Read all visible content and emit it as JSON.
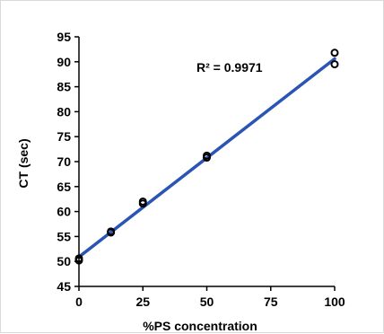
{
  "chart_data": {
    "type": "scatter",
    "title": "",
    "xlabel": "%PS concentration",
    "ylabel": "CT (sec)",
    "xlim": [
      0,
      100
    ],
    "ylim": [
      45,
      95
    ],
    "x_ticks": [
      "0",
      "25",
      "50",
      "75",
      "100"
    ],
    "y_ticks": [
      "45",
      "50",
      "55",
      "60",
      "65",
      "70",
      "75",
      "80",
      "85",
      "90",
      "95"
    ],
    "grid": false,
    "legend": "none",
    "annotation": "R² = 0.9971",
    "series": [
      {
        "x": [
          0,
          0,
          12.5,
          12.5,
          25,
          25,
          50,
          50,
          100,
          100
        ],
        "y": [
          50.2,
          50.6,
          55.8,
          56.0,
          61.6,
          62.0,
          70.8,
          71.2,
          89.5,
          91.8
        ],
        "marker": "open-circle",
        "color": "#000000"
      }
    ],
    "trendline": {
      "type": "linear",
      "x": [
        0,
        100
      ],
      "y": [
        50.9,
        90.6
      ],
      "color": "#2a55b5"
    }
  }
}
